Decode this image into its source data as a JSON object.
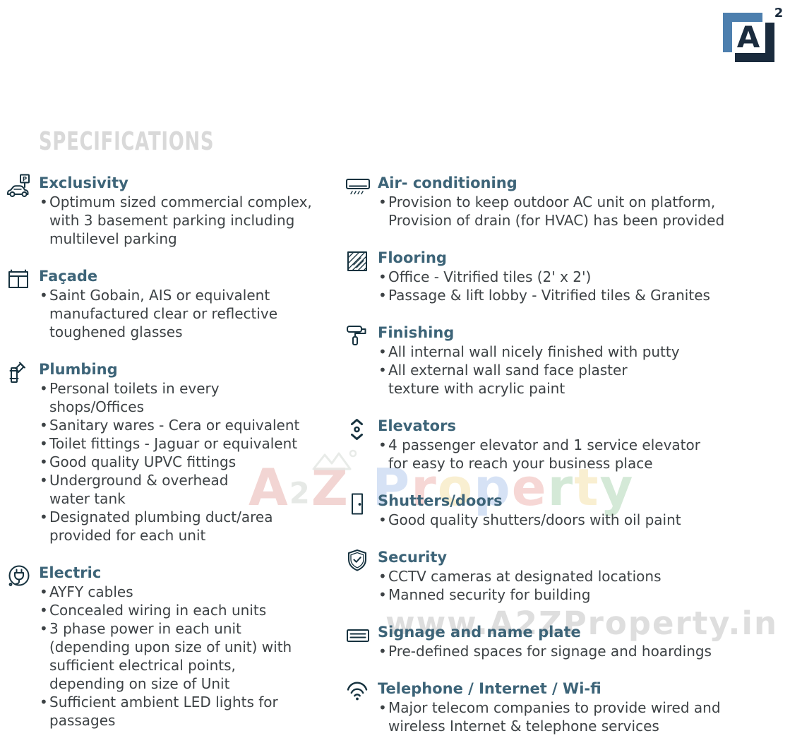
{
  "page": {
    "title": "SPECIFICATIONS",
    "background": "#ffffff"
  },
  "logo": {
    "letter": "A",
    "superscript": "2",
    "light_color": "#4d7fae",
    "dark_color": "#1a2b3d"
  },
  "watermarks": {
    "brand": {
      "text": "A2Z Property",
      "letters": [
        {
          "ch": "A",
          "color": "#c9453a",
          "small": false
        },
        {
          "ch": "2",
          "color": "#8f9d8f",
          "small": true
        },
        {
          "ch": "Z",
          "color": "#c9453a",
          "small": false
        },
        {
          "ch": " ",
          "color": "",
          "small": false
        },
        {
          "ch": "P",
          "color": "#4a7fd4",
          "small": false
        },
        {
          "ch": "r",
          "color": "#d94f43",
          "small": false
        },
        {
          "ch": "o",
          "color": "#e8b931",
          "small": false
        },
        {
          "ch": "p",
          "color": "#4a7fd4",
          "small": false
        },
        {
          "ch": "e",
          "color": "#d94f43",
          "small": false
        },
        {
          "ch": "r",
          "color": "#3f9e4d",
          "small": false
        },
        {
          "ch": "t",
          "color": "#e8b931",
          "small": false
        },
        {
          "ch": "y",
          "color": "#3f9e4d",
          "small": false
        }
      ]
    },
    "url": {
      "text": "www.A2ZProperty.in",
      "color": "#c4c4c4"
    }
  },
  "colors": {
    "heading": "#3d6478",
    "body": "#3d4245",
    "icon": "#16323f",
    "title_gray": "#d9d9d9"
  },
  "columns": {
    "left": [
      {
        "id": "exclusivity",
        "icon": "car-parking-icon",
        "title": "Exclusivity",
        "bullets": [
          "Optimum sized commercial complex,\nwith 3 basement parking including\nmultilevel parking"
        ]
      },
      {
        "id": "facade",
        "icon": "window-facade-icon",
        "title": "Façade",
        "bullets": [
          "Saint Gobain, AIS or equivalent\nmanufactured clear or reflective\ntoughened glasses"
        ]
      },
      {
        "id": "plumbing",
        "icon": "pipe-icon",
        "title": "Plumbing",
        "bullets": [
          "Personal toilets in every\nshops/Offices",
          "Sanitary wares - Cera or equivalent",
          "Toilet fittings - Jaguar or equivalent",
          "Good quality UPVC fittings",
          "Underground & overhead\nwater tank",
          "Designated plumbing duct/area\nprovided for each unit"
        ]
      },
      {
        "id": "electric",
        "icon": "plug-icon",
        "title": "Electric",
        "bullets": [
          "AYFY cables",
          "Concealed wiring in each units",
          "3 phase power in each unit\n(depending upon size of unit) with\nsufficient electrical points,\ndepending on size of Unit",
          "Sufficient ambient LED lights for\npassages"
        ]
      }
    ],
    "right": [
      {
        "id": "air-conditioning",
        "icon": "ac-unit-icon",
        "title": "Air- conditioning",
        "bullets": [
          "Provision to keep outdoor AC unit on platform,\nProvision of drain (for HVAC) has been provided"
        ]
      },
      {
        "id": "flooring",
        "icon": "tiles-icon",
        "title": "Flooring",
        "bullets": [
          "Office - Vitrified tiles (2' x 2')",
          "Passage & lift lobby - Vitrified tiles & Granites"
        ]
      },
      {
        "id": "finishing",
        "icon": "paint-roller-icon",
        "title": "Finishing",
        "bullets": [
          "All internal wall nicely finished with putty",
          "All external wall sand face plaster\ntexture with acrylic paint"
        ]
      },
      {
        "id": "elevators",
        "icon": "elevator-icon",
        "title": "Elevators",
        "bullets": [
          "4 passenger elevator and 1 service elevator\nfor easy to reach your business place"
        ]
      },
      {
        "id": "shutters-doors",
        "icon": "door-icon",
        "title": "Shutters/doors",
        "bullets": [
          "Good quality shutters/doors with oil paint"
        ]
      },
      {
        "id": "security",
        "icon": "shield-check-icon",
        "title": "Security",
        "bullets": [
          "CCTV cameras at designated locations",
          "Manned security for building"
        ]
      },
      {
        "id": "signage",
        "icon": "signboard-icon",
        "title": "Signage and name plate",
        "bullets": [
          "Pre-defined spaces for signage and hoardings"
        ]
      },
      {
        "id": "telephone-internet-wifi",
        "icon": "wifi-icon",
        "title": "Telephone / Internet / Wi-fi",
        "bullets": [
          "Major telecom companies to provide wired and\nwireless Internet & telephone services"
        ]
      }
    ]
  }
}
